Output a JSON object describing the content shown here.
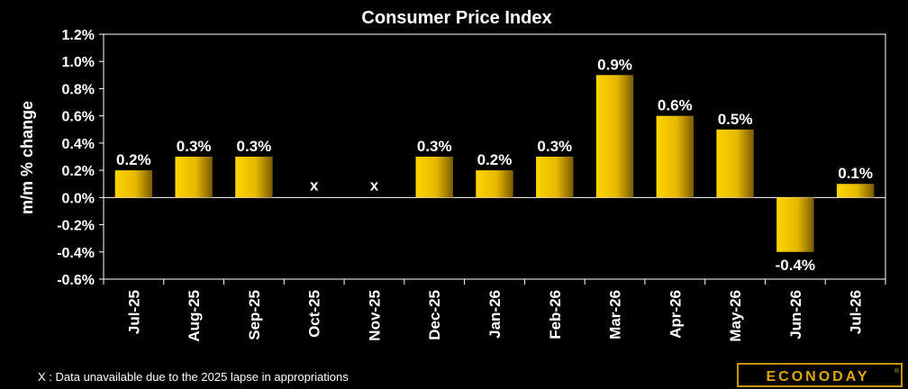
{
  "chart_data": {
    "type": "bar",
    "title": "Consumer Price Index",
    "xlabel": "",
    "ylabel": "m/m % change",
    "categories": [
      "Jul-25",
      "Aug-25",
      "Sep-25",
      "Oct-25",
      "Nov-25",
      "Dec-25",
      "Jan-26",
      "Feb-26",
      "Mar-26",
      "Apr-26",
      "May-26",
      "Jun-26",
      "Jul-26"
    ],
    "values": [
      0.2,
      0.3,
      0.3,
      null,
      null,
      0.3,
      0.2,
      0.3,
      0.9,
      0.6,
      0.5,
      -0.4,
      0.1
    ],
    "data_labels": [
      "0.2%",
      "0.3%",
      "0.3%",
      "x",
      "x",
      "0.3%",
      "0.2%",
      "0.3%",
      "0.9%",
      "0.6%",
      "0.5%",
      "-0.4%",
      "0.1%"
    ],
    "ylim": [
      -0.6,
      1.2
    ],
    "yticks": [
      1.2,
      1.0,
      0.8,
      0.6,
      0.4,
      0.2,
      0.0,
      -0.2,
      -0.4,
      -0.6
    ],
    "ytick_labels": [
      "1.2%",
      "1.0%",
      "0.8%",
      "0.6%",
      "0.4%",
      "0.2%",
      "0.0%",
      "-0.2%",
      "-0.4%",
      "-0.6%"
    ],
    "grid": false,
    "legend": "none",
    "annotation": "X : Data unavailable due to the 2025 lapse in appropriations",
    "colors": {
      "background": "#000000",
      "plot_area": "#000000",
      "bar_light": "#ffd400",
      "bar_dark": "#7a5a00",
      "axes": "#ffffff"
    }
  },
  "logo": {
    "text": "ECONODAY"
  }
}
